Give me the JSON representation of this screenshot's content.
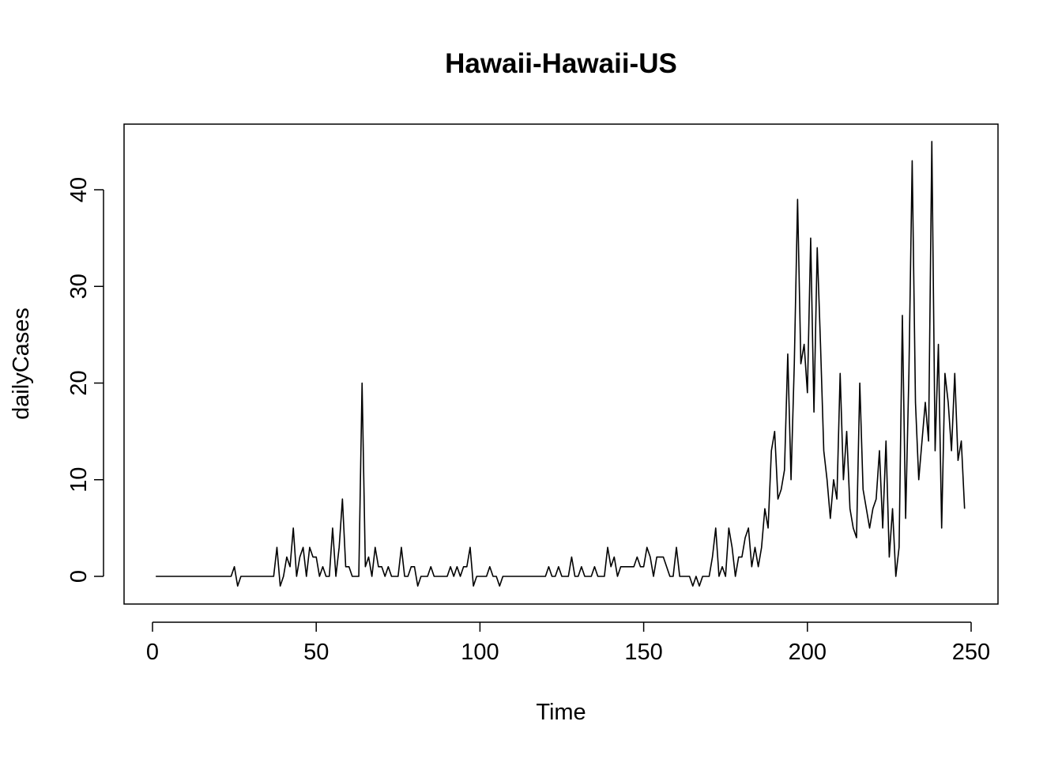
{
  "chart_data": {
    "type": "line",
    "title": "Hawaii-Hawaii-US",
    "xlabel": "Time",
    "ylabel": "dailyCases",
    "xlim": [
      1,
      248
    ],
    "ylim": [
      -1,
      45
    ],
    "x_ticks": [
      0,
      50,
      100,
      150,
      200,
      250
    ],
    "y_ticks": [
      0,
      10,
      20,
      30,
      40
    ],
    "grid": false,
    "legend": "none",
    "line_color": "#000000",
    "series": [
      {
        "x_start": 1,
        "x_step": 1,
        "values": [
          0,
          0,
          0,
          0,
          0,
          0,
          0,
          0,
          0,
          0,
          0,
          0,
          0,
          0,
          0,
          0,
          0,
          0,
          0,
          0,
          0,
          0,
          0,
          0,
          1,
          -1,
          0,
          0,
          0,
          0,
          0,
          0,
          0,
          0,
          0,
          0,
          0,
          3,
          -1,
          0,
          2,
          1,
          5,
          0,
          2,
          3,
          0,
          3,
          2,
          2,
          0,
          1,
          0,
          0,
          5,
          0,
          3,
          8,
          1,
          1,
          0,
          0,
          0,
          20,
          1,
          2,
          0,
          3,
          1,
          1,
          0,
          1,
          0,
          0,
          0,
          3,
          0,
          0,
          1,
          1,
          -1,
          0,
          0,
          0,
          1,
          0,
          0,
          0,
          0,
          0,
          1,
          0,
          1,
          0,
          1,
          1,
          3,
          -1,
          0,
          0,
          0,
          0,
          1,
          0,
          0,
          -1,
          0,
          0,
          0,
          0,
          0,
          0,
          0,
          0,
          0,
          0,
          0,
          0,
          0,
          0,
          1,
          0,
          0,
          1,
          0,
          0,
          0,
          2,
          0,
          0,
          1,
          0,
          0,
          0,
          1,
          0,
          0,
          0,
          3,
          1,
          2,
          0,
          1,
          1,
          1,
          1,
          1,
          2,
          1,
          1,
          3,
          2,
          0,
          2,
          2,
          2,
          1,
          0,
          0,
          3,
          0,
          0,
          0,
          0,
          -1,
          0,
          -1,
          0,
          0,
          0,
          2,
          5,
          0,
          1,
          0,
          5,
          3,
          0,
          2,
          2,
          4,
          5,
          1,
          3,
          1,
          3,
          7,
          5,
          13,
          15,
          8,
          9,
          11,
          23,
          10,
          22,
          39,
          22,
          24,
          19,
          35,
          17,
          34,
          24,
          13,
          10,
          6,
          10,
          8,
          21,
          10,
          15,
          7,
          5,
          4,
          20,
          9,
          7,
          5,
          7,
          8,
          13,
          5,
          14,
          2,
          7,
          0,
          3,
          27,
          6,
          21,
          43,
          18,
          10,
          14,
          18,
          14,
          45,
          13,
          24,
          5,
          21,
          18,
          13,
          21,
          12,
          14,
          7
        ]
      }
    ]
  }
}
